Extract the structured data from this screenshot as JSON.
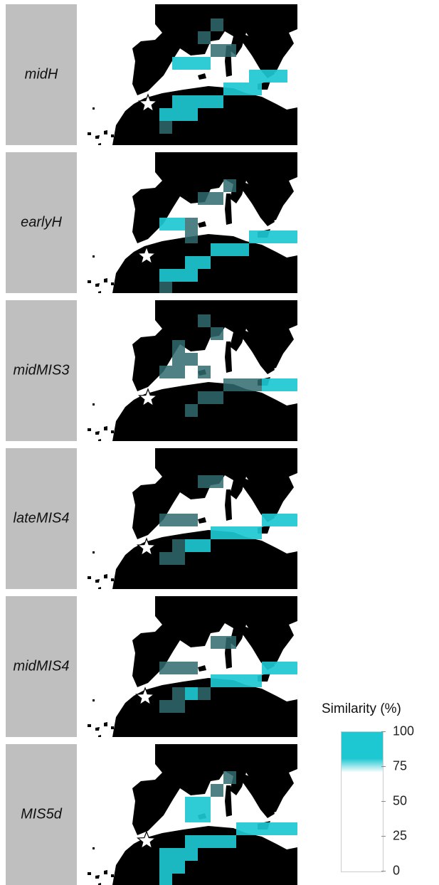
{
  "panels": [
    {
      "label": "midH",
      "cells": [
        [
          9,
          5,
          "c"
        ],
        [
          10,
          5,
          "c"
        ],
        [
          11,
          5,
          "c"
        ],
        [
          7,
          6,
          "c"
        ],
        [
          8,
          6,
          "c"
        ],
        [
          9,
          6,
          "c"
        ],
        [
          3,
          7,
          "c"
        ],
        [
          4,
          7,
          "c"
        ],
        [
          5,
          7,
          "c"
        ],
        [
          6,
          7,
          "c"
        ],
        [
          2,
          8,
          "c"
        ],
        [
          3,
          8,
          "c"
        ],
        [
          4,
          8,
          "c"
        ],
        [
          2,
          9,
          "d"
        ],
        [
          6,
          3,
          "d"
        ],
        [
          7,
          3,
          "d"
        ],
        [
          4,
          4,
          "c"
        ],
        [
          5,
          4,
          "c"
        ],
        [
          3,
          4,
          "c"
        ],
        [
          14,
          1,
          "d"
        ],
        [
          15,
          0,
          "c"
        ],
        [
          15,
          1,
          "c"
        ],
        [
          16,
          2,
          "d"
        ],
        [
          5,
          2,
          "d"
        ],
        [
          6,
          1,
          "d"
        ]
      ]
    },
    {
      "label": "earlyH",
      "cells": [
        [
          9,
          6,
          "c"
        ],
        [
          10,
          6,
          "c"
        ],
        [
          11,
          6,
          "c"
        ],
        [
          12,
          6,
          "c"
        ],
        [
          6,
          7,
          "c"
        ],
        [
          7,
          7,
          "c"
        ],
        [
          8,
          7,
          "c"
        ],
        [
          4,
          8,
          "c"
        ],
        [
          5,
          8,
          "c"
        ],
        [
          3,
          9,
          "c"
        ],
        [
          4,
          9,
          "c"
        ],
        [
          2,
          9,
          "c"
        ],
        [
          2,
          10,
          "d"
        ],
        [
          2,
          5,
          "c"
        ],
        [
          3,
          5,
          "c"
        ],
        [
          4,
          5,
          "d"
        ],
        [
          5,
          3,
          "d"
        ],
        [
          6,
          3,
          "d"
        ],
        [
          7,
          2,
          "d"
        ],
        [
          15,
          1,
          "c"
        ],
        [
          15,
          2,
          "d"
        ],
        [
          16,
          3,
          "d"
        ],
        [
          14,
          2,
          "d"
        ],
        [
          4,
          6,
          "d"
        ]
      ]
    },
    {
      "label": "midMIS3",
      "cells": [
        [
          7,
          6,
          "d"
        ],
        [
          8,
          6,
          "d"
        ],
        [
          9,
          6,
          "d"
        ],
        [
          10,
          6,
          "c"
        ],
        [
          11,
          6,
          "c"
        ],
        [
          12,
          6,
          "c"
        ],
        [
          5,
          7,
          "d"
        ],
        [
          6,
          7,
          "d"
        ],
        [
          4,
          8,
          "d"
        ],
        [
          3,
          3,
          "d"
        ],
        [
          3,
          4,
          "d"
        ],
        [
          4,
          4,
          "d"
        ],
        [
          5,
          5,
          "d"
        ],
        [
          5,
          1,
          "d"
        ],
        [
          6,
          2,
          "d"
        ],
        [
          14,
          1,
          "d"
        ],
        [
          15,
          1,
          "d"
        ],
        [
          16,
          1,
          "d"
        ],
        [
          15,
          2,
          "d"
        ],
        [
          2,
          5,
          "d"
        ],
        [
          3,
          5,
          "d"
        ]
      ]
    },
    {
      "label": "lateMIS4",
      "cells": [
        [
          8,
          6,
          "c"
        ],
        [
          9,
          6,
          "c"
        ],
        [
          10,
          5,
          "c"
        ],
        [
          11,
          5,
          "c"
        ],
        [
          12,
          5,
          "c"
        ],
        [
          6,
          6,
          "c"
        ],
        [
          7,
          6,
          "c"
        ],
        [
          5,
          7,
          "c"
        ],
        [
          4,
          7,
          "c"
        ],
        [
          3,
          7,
          "d"
        ],
        [
          2,
          8,
          "d"
        ],
        [
          3,
          8,
          "d"
        ],
        [
          2,
          5,
          "d"
        ],
        [
          3,
          5,
          "d"
        ],
        [
          4,
          5,
          "d"
        ],
        [
          5,
          2,
          "d"
        ],
        [
          6,
          2,
          "d"
        ],
        [
          15,
          3,
          "d"
        ],
        [
          16,
          3,
          "d"
        ],
        [
          15,
          4,
          "d"
        ],
        [
          14,
          2,
          "d"
        ]
      ]
    },
    {
      "label": "midMIS4",
      "cells": [
        [
          8,
          6,
          "c"
        ],
        [
          9,
          6,
          "c"
        ],
        [
          10,
          5,
          "c"
        ],
        [
          11,
          5,
          "c"
        ],
        [
          12,
          5,
          "c"
        ],
        [
          6,
          6,
          "c"
        ],
        [
          7,
          6,
          "c"
        ],
        [
          5,
          7,
          "d"
        ],
        [
          4,
          7,
          "c"
        ],
        [
          3,
          7,
          "d"
        ],
        [
          2,
          8,
          "d"
        ],
        [
          3,
          8,
          "d"
        ],
        [
          2,
          5,
          "d"
        ],
        [
          3,
          5,
          "d"
        ],
        [
          4,
          5,
          "d"
        ],
        [
          6,
          3,
          "d"
        ],
        [
          7,
          3,
          "d"
        ],
        [
          15,
          2,
          "d"
        ],
        [
          16,
          2,
          "d"
        ]
      ]
    },
    {
      "label": "MIS5d",
      "cells": [
        [
          8,
          6,
          "c"
        ],
        [
          9,
          6,
          "c"
        ],
        [
          10,
          6,
          "c"
        ],
        [
          11,
          6,
          "c"
        ],
        [
          12,
          6,
          "c"
        ],
        [
          4,
          7,
          "c"
        ],
        [
          5,
          7,
          "c"
        ],
        [
          6,
          7,
          "c"
        ],
        [
          7,
          7,
          "c"
        ],
        [
          2,
          8,
          "c"
        ],
        [
          3,
          8,
          "c"
        ],
        [
          4,
          8,
          "c"
        ],
        [
          2,
          9,
          "c"
        ],
        [
          3,
          9,
          "c"
        ],
        [
          4,
          4,
          "c"
        ],
        [
          5,
          4,
          "c"
        ],
        [
          4,
          5,
          "c"
        ],
        [
          5,
          5,
          "c"
        ],
        [
          6,
          3,
          "d"
        ],
        [
          7,
          2,
          "d"
        ],
        [
          15,
          1,
          "c"
        ],
        [
          15,
          2,
          "d"
        ],
        [
          16,
          2,
          "d"
        ],
        [
          14,
          2,
          "d"
        ],
        [
          2,
          10,
          "c"
        ]
      ]
    }
  ],
  "legend": {
    "title": "Similarity (%)",
    "ticks": [
      "100",
      "75",
      "50",
      "25",
      "0"
    ],
    "tick_values": [
      100,
      75,
      50,
      25,
      0
    ],
    "colors": {
      "high": "#1ec8d2",
      "low": "#ffffff",
      "land": "#000000",
      "sea": "#ffffff",
      "strip": "#bfbfbf"
    }
  },
  "marker": {
    "name": "star-icon"
  }
}
